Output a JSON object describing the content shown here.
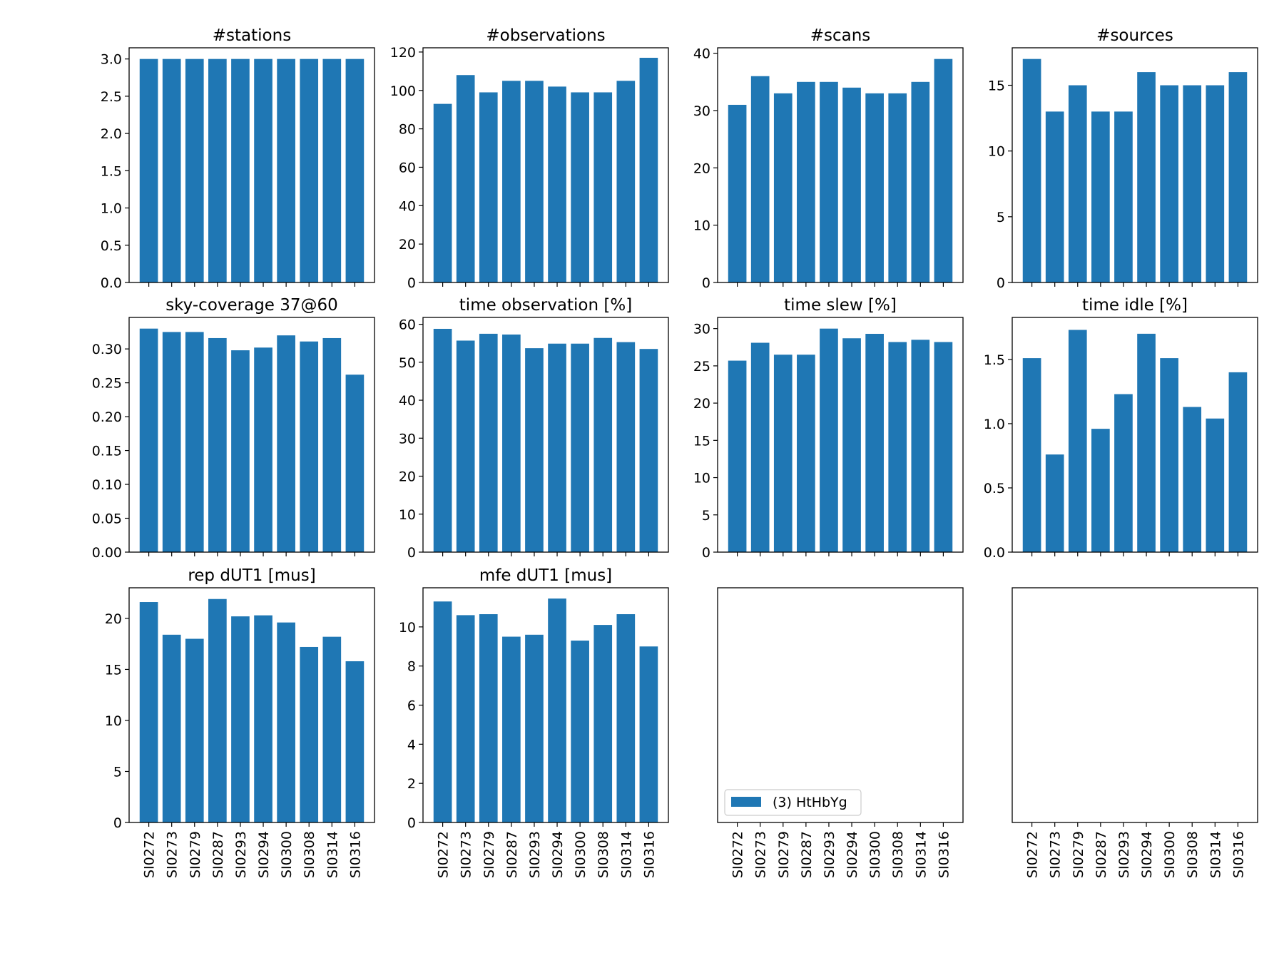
{
  "chart_data": [
    {
      "type": "bar",
      "title": "#stations",
      "color": "#1f77b4",
      "values": [
        3,
        3,
        3,
        3,
        3,
        3,
        3,
        3,
        3,
        3
      ],
      "ylim": [
        0,
        3.15
      ],
      "yticks": [
        {
          "value": 0,
          "label": "0.0"
        },
        0.5,
        {
          "value": 1,
          "label": "1.0"
        },
        1.5,
        {
          "value": 2,
          "label": "2.0"
        },
        2.5,
        {
          "value": 3,
          "label": "3.0"
        }
      ]
    },
    {
      "type": "bar",
      "title": "#observations",
      "color": "#1f77b4",
      "values": [
        93,
        108,
        99,
        105,
        105,
        102,
        99,
        99,
        105,
        117
      ],
      "ylim": [
        0,
        122.2
      ],
      "yticks": [
        0,
        20,
        40,
        60,
        80,
        100,
        120
      ]
    },
    {
      "type": "bar",
      "title": "#scans",
      "color": "#1f77b4",
      "values": [
        31,
        36,
        33,
        35,
        35,
        34,
        33,
        33,
        35,
        39
      ],
      "ylim": [
        0,
        40.95
      ],
      "yticks": [
        0,
        10,
        20,
        30,
        40
      ]
    },
    {
      "type": "bar",
      "title": "#sources",
      "color": "#1f77b4",
      "values": [
        17,
        13,
        15,
        13,
        13,
        16,
        15,
        15,
        15,
        16
      ],
      "ylim": [
        0,
        17.85
      ],
      "yticks": [
        0,
        5,
        10,
        15
      ]
    },
    {
      "type": "bar",
      "title": "sky-coverage 37@60",
      "color": "#1f77b4",
      "values": [
        0.33,
        0.325,
        0.325,
        0.316,
        0.298,
        0.302,
        0.32,
        0.311,
        0.316,
        0.262
      ],
      "ylim": [
        0,
        0.3465
      ],
      "yticks": [
        {
          "value": 0,
          "label": "0.00"
        },
        0.05,
        {
          "value": 0.1,
          "label": "0.10"
        },
        0.15,
        {
          "value": 0.2,
          "label": "0.20"
        },
        0.25,
        {
          "value": 0.3,
          "label": "0.30"
        }
      ]
    },
    {
      "type": "bar",
      "title": "time observation [%]",
      "color": "#1f77b4",
      "values": [
        58.8,
        55.7,
        57.5,
        57.3,
        53.7,
        54.9,
        54.9,
        56.4,
        55.3,
        53.5
      ],
      "ylim": [
        0,
        61.8
      ],
      "yticks": [
        0,
        10,
        20,
        30,
        40,
        50,
        60
      ]
    },
    {
      "type": "bar",
      "title": "time slew [%]",
      "color": "#1f77b4",
      "values": [
        25.7,
        28.1,
        26.5,
        26.5,
        30.0,
        28.7,
        29.3,
        28.2,
        28.5,
        28.2
      ],
      "ylim": [
        0,
        31.5
      ],
      "yticks": [
        0,
        5,
        10,
        15,
        20,
        25,
        30
      ]
    },
    {
      "type": "bar",
      "title": "time idle [%]",
      "color": "#1f77b4",
      "values": [
        1.51,
        0.76,
        1.73,
        0.96,
        1.23,
        1.7,
        1.51,
        1.13,
        1.04,
        1.4
      ],
      "ylim": [
        0,
        1.827
      ],
      "yticks": [
        {
          "value": 0,
          "label": "0.0"
        },
        0.5,
        {
          "value": 1,
          "label": "1.0"
        },
        1.5
      ]
    },
    {
      "type": "bar",
      "title": "rep dUT1 [mus]",
      "color": "#1f77b4",
      "values": [
        21.6,
        18.4,
        18.0,
        21.9,
        20.2,
        20.3,
        19.6,
        17.2,
        18.2,
        15.8
      ],
      "ylim": [
        0,
        23.0
      ],
      "yticks": [
        0,
        5,
        10,
        15,
        20
      ],
      "categories": [
        "SI0272",
        "SI0273",
        "SI0279",
        "SI0287",
        "SI0293",
        "SI0294",
        "SI0300",
        "SI0308",
        "SI0314",
        "SI0316"
      ]
    },
    {
      "type": "bar",
      "title": "mfe dUT1 [mus]",
      "color": "#1f77b4",
      "values": [
        11.3,
        10.6,
        10.65,
        9.5,
        9.6,
        11.45,
        9.3,
        10.1,
        10.65,
        9.0
      ],
      "ylim": [
        0,
        12.0
      ],
      "yticks": [
        0,
        2,
        4,
        6,
        8,
        10
      ],
      "categories": [
        "SI0272",
        "SI0273",
        "SI0279",
        "SI0287",
        "SI0293",
        "SI0294",
        "SI0300",
        "SI0308",
        "SI0314",
        "SI0316"
      ]
    },
    {
      "type": "bar",
      "categories": [
        "SI0272",
        "SI0273",
        "SI0279",
        "SI0287",
        "SI0293",
        "SI0294",
        "SI0300",
        "SI0308",
        "SI0314",
        "SI0316"
      ],
      "legend": {
        "label": "(3) HtHbYg",
        "color": "#1f77b4",
        "loc": "lower left"
      }
    },
    {
      "type": "bar",
      "categories": [
        "SI0272",
        "SI0273",
        "SI0279",
        "SI0287",
        "SI0293",
        "SI0294",
        "SI0300",
        "SI0308",
        "SI0314",
        "SI0316"
      ]
    }
  ]
}
